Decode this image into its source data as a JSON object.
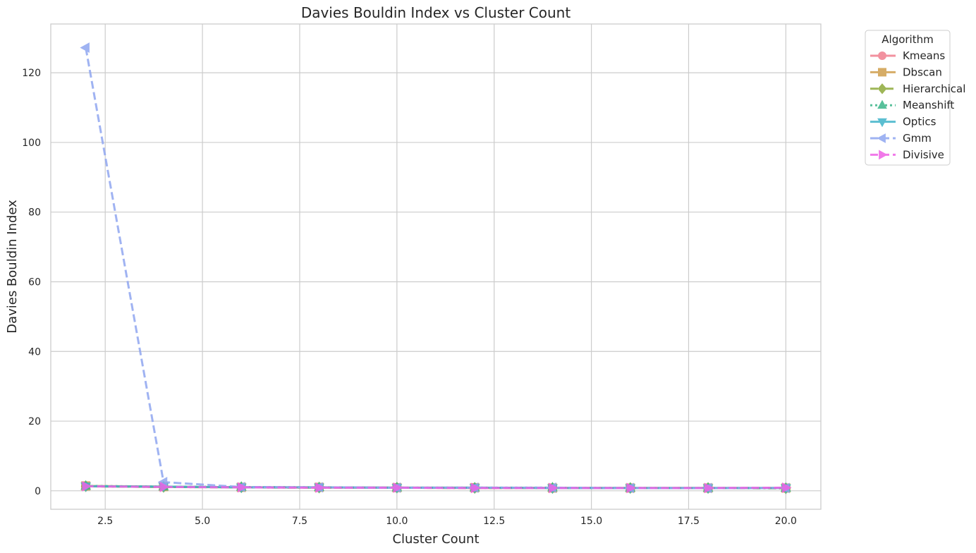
{
  "chart_data": {
    "type": "line",
    "title": "Davies Bouldin Index vs Cluster Count",
    "xlabel": "Cluster Count",
    "ylabel": "Davies Bouldin Index",
    "xlim": [
      1.1,
      20.9
    ],
    "ylim": [
      -5.3,
      134.0
    ],
    "xticks": [
      2.5,
      5.0,
      7.5,
      10.0,
      12.5,
      15.0,
      17.5,
      20.0
    ],
    "xtick_labels": [
      "2.5",
      "5.0",
      "7.5",
      "10.0",
      "12.5",
      "15.0",
      "17.5",
      "20.0"
    ],
    "yticks": [
      0,
      20,
      40,
      60,
      80,
      100,
      120
    ],
    "ytick_labels": [
      "0",
      "20",
      "40",
      "60",
      "80",
      "100",
      "120"
    ],
    "grid": true,
    "legend": {
      "title": "Algorithm",
      "placement": "outside-top-right"
    },
    "x": [
      2,
      4,
      6,
      8,
      10,
      12,
      14,
      16,
      18,
      20
    ],
    "series": [
      {
        "name": "Kmeans",
        "color": "#f07e8f",
        "dash": "solid",
        "marker": "circle",
        "values": [
          1.3,
          1.1,
          1.0,
          0.9,
          0.9,
          0.8,
          0.8,
          0.8,
          0.8,
          0.8
        ]
      },
      {
        "name": "Dbscan",
        "color": "#cf9e4c",
        "dash": "solid",
        "marker": "square",
        "values": [
          1.4,
          1.2,
          1.0,
          1.0,
          0.9,
          0.9,
          0.8,
          0.8,
          0.8,
          0.8
        ]
      },
      {
        "name": "Hierarchical",
        "color": "#8eaa3a",
        "dash": "dashdot",
        "marker": "diamond",
        "values": [
          1.3,
          1.1,
          1.0,
          0.9,
          0.9,
          0.8,
          0.8,
          0.8,
          0.8,
          0.7
        ]
      },
      {
        "name": "Meanshift",
        "color": "#3bb68a",
        "dash": "dotted",
        "marker": "triangle-up",
        "values": [
          1.4,
          1.2,
          1.1,
          1.0,
          0.9,
          0.9,
          0.9,
          0.8,
          0.8,
          0.8
        ]
      },
      {
        "name": "Optics",
        "color": "#3fb3c9",
        "dash": "solid",
        "marker": "triangle-down",
        "values": [
          1.3,
          1.2,
          1.0,
          1.0,
          0.9,
          0.9,
          0.8,
          0.8,
          0.8,
          0.8
        ]
      },
      {
        "name": "Gmm",
        "color": "#8fa6f0",
        "dash": "dashed",
        "marker": "triangle-left",
        "values": [
          127.2,
          2.5,
          1.1,
          1.0,
          0.9,
          0.9,
          0.9,
          0.8,
          0.8,
          0.8
        ]
      },
      {
        "name": "Divisive",
        "color": "#ef62e6",
        "dash": "dashed",
        "marker": "triangle-right",
        "values": [
          1.3,
          1.1,
          1.0,
          0.9,
          0.9,
          0.8,
          0.8,
          0.8,
          0.8,
          0.9
        ]
      }
    ]
  }
}
